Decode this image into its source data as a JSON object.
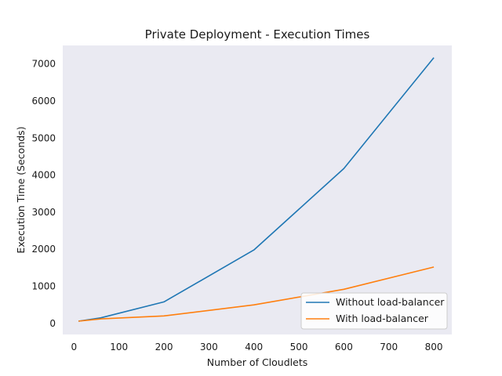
{
  "chart_data": {
    "type": "line",
    "title": "Private Deployment - Execution Times",
    "xlabel": "Number of Cloudlets",
    "ylabel": "Execution Time (Seconds)",
    "xlim": [
      -25,
      840
    ],
    "ylim": [
      -300,
      7500
    ],
    "xticks": [
      0,
      100,
      200,
      300,
      400,
      500,
      600,
      700,
      800
    ],
    "yticks": [
      0,
      1000,
      2000,
      3000,
      4000,
      5000,
      6000,
      7000
    ],
    "grid": false,
    "legend_position": "lower-right",
    "colors": {
      "plot_background": "#eaeaf2",
      "series_1": "#1f77b4",
      "series_2": "#ff7f0e"
    },
    "series": [
      {
        "name": "Without load-balancer",
        "x": [
          10,
          60,
          200,
          400,
          600,
          800
        ],
        "y": [
          60,
          150,
          580,
          1980,
          4180,
          7170
        ]
      },
      {
        "name": "With load-balancer",
        "x": [
          10,
          60,
          200,
          400,
          600,
          800
        ],
        "y": [
          60,
          120,
          200,
          500,
          920,
          1520
        ]
      }
    ]
  }
}
